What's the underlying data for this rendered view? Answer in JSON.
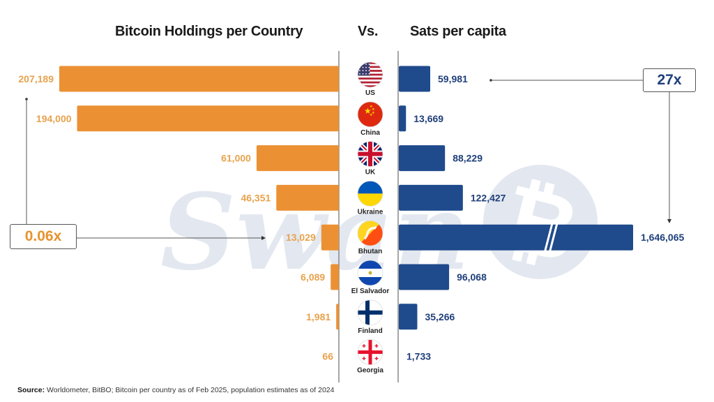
{
  "header": {
    "left_title": "Bitcoin Holdings per Country",
    "vs_label": "Vs.",
    "right_title": "Sats per capita"
  },
  "colors": {
    "orange": "#EB9134",
    "orange_text": "#E8A24D",
    "blue": "#1F4A8C",
    "blue_text": "#1F3F7A",
    "watermark": "#E3E8F0"
  },
  "callouts": {
    "left": "0.06x",
    "right": "27x"
  },
  "watermark": "Swan",
  "source": {
    "label": "Source:",
    "text": " Worldometer, BitBO; Bitcoin per country as of Feb 2025, population estimates as of 2024"
  },
  "chart_data": {
    "type": "bar",
    "title": "Bitcoin Holdings per Country Vs. Sats per capita",
    "categories": [
      "US",
      "China",
      "UK",
      "Ukraine",
      "Bhutan",
      "El Salvador",
      "Finland",
      "Georgia"
    ],
    "flags": [
      "us-flag",
      "china-flag",
      "uk-flag",
      "ukraine-flag",
      "bhutan-flag",
      "el-salvador-flag",
      "finland-flag",
      "georgia-flag"
    ],
    "series": [
      {
        "name": "Bitcoin Holdings per Country",
        "direction": "left",
        "values": [
          207189,
          194000,
          61000,
          46351,
          13029,
          6089,
          1981,
          66
        ],
        "labels": [
          "207,189",
          "194,000",
          "61,000",
          "46,351",
          "13,029",
          "6,089",
          "1,981",
          "66"
        ]
      },
      {
        "name": "Sats per capita",
        "direction": "right",
        "values": [
          59981,
          13669,
          88229,
          122427,
          1646065,
          96068,
          35266,
          1733
        ],
        "labels": [
          "59,981",
          "13,669",
          "88,229",
          "122,427",
          "1,646,065",
          "96,068",
          "35,266",
          "1,733"
        ],
        "axis_break_on": "Bhutan"
      }
    ],
    "annotations": [
      {
        "text": "0.06x",
        "from": "US",
        "to": "Bhutan",
        "series": "Bitcoin Holdings per Country"
      },
      {
        "text": "27x",
        "from": "US",
        "to": "Bhutan",
        "series": "Sats per capita"
      }
    ]
  }
}
